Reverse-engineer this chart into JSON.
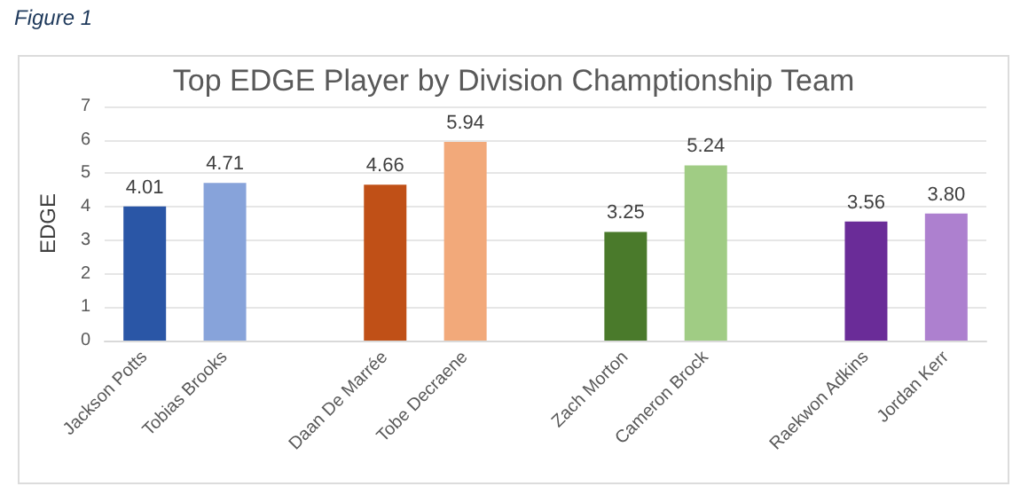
{
  "chart_data": {
    "type": "bar",
    "title": "Top EDGE Player by Division Champtionship Team",
    "ylabel": "EDGE",
    "annotations": [
      "Figure 1"
    ],
    "categories": [
      "Jackson Potts",
      "Tobias Brooks",
      null,
      "Daan De Marrée",
      "Tobe Decraene",
      null,
      "Zach Morton",
      "Cameron Brock",
      null,
      "Raekwon Adkins",
      "Jordan Kerr"
    ],
    "values": [
      4.01,
      4.71,
      null,
      4.66,
      5.94,
      null,
      3.25,
      5.24,
      null,
      3.56,
      3.8
    ],
    "colors": [
      "#2a56a6",
      "#87a3da",
      null,
      "#c05017",
      "#f2a97a",
      null,
      "#4a7a2b",
      "#a0cc84",
      null,
      "#6a2c98",
      "#ad80cf"
    ],
    "value_labels": [
      "4.01",
      "4.71",
      null,
      "4.66",
      "5.94",
      null,
      "3.25",
      "5.24",
      null,
      "3.56",
      "3.80"
    ],
    "ylim": [
      0,
      7
    ],
    "yticks": [
      0,
      1,
      2,
      3,
      4,
      5,
      6,
      7
    ],
    "grid": "y"
  }
}
